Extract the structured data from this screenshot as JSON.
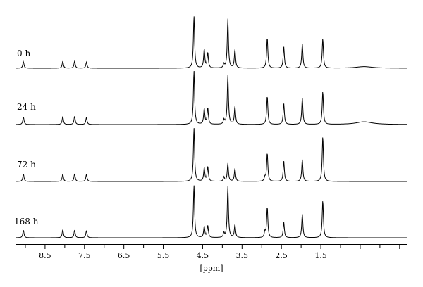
{
  "chart_data": {
    "type": "line",
    "xlabel": "[ppm]",
    "x_ticks": [
      "8.5",
      "7.5",
      "6.5",
      "5.5",
      "4.5",
      "3.5",
      "2.5",
      "1.5"
    ],
    "xlim": [
      9.25,
      -0.7
    ],
    "x_reversed": true,
    "series": [
      {
        "name": "0 h",
        "peaks": [
          {
            "x": 9.05,
            "h": 0.12
          },
          {
            "x": 8.05,
            "h": 0.13
          },
          {
            "x": 7.75,
            "h": 0.13
          },
          {
            "x": 7.45,
            "h": 0.11
          },
          {
            "x": 4.72,
            "h": 0.95
          },
          {
            "x": 4.46,
            "h": 0.34
          },
          {
            "x": 4.37,
            "h": 0.28
          },
          {
            "x": 3.96,
            "h": 0.07
          },
          {
            "x": 3.86,
            "h": 0.9
          },
          {
            "x": 3.68,
            "h": 0.34
          },
          {
            "x": 2.86,
            "h": 0.56
          },
          {
            "x": 2.44,
            "h": 0.39
          },
          {
            "x": 1.97,
            "h": 0.44
          },
          {
            "x": 1.45,
            "h": 0.54
          },
          {
            "x": 0.4,
            "h": 0.03
          }
        ]
      },
      {
        "name": "24 h",
        "peaks": [
          {
            "x": 9.05,
            "h": 0.14
          },
          {
            "x": 8.05,
            "h": 0.15
          },
          {
            "x": 7.75,
            "h": 0.15
          },
          {
            "x": 7.45,
            "h": 0.13
          },
          {
            "x": 4.72,
            "h": 0.98
          },
          {
            "x": 4.46,
            "h": 0.28
          },
          {
            "x": 4.37,
            "h": 0.3
          },
          {
            "x": 3.96,
            "h": 0.08
          },
          {
            "x": 3.86,
            "h": 0.9
          },
          {
            "x": 3.68,
            "h": 0.33
          },
          {
            "x": 2.86,
            "h": 0.52
          },
          {
            "x": 2.44,
            "h": 0.38
          },
          {
            "x": 1.97,
            "h": 0.48
          },
          {
            "x": 1.45,
            "h": 0.6
          },
          {
            "x": 0.4,
            "h": 0.05
          }
        ]
      },
      {
        "name": "72 h",
        "peaks": [
          {
            "x": 9.05,
            "h": 0.14
          },
          {
            "x": 8.05,
            "h": 0.14
          },
          {
            "x": 7.75,
            "h": 0.14
          },
          {
            "x": 7.45,
            "h": 0.13
          },
          {
            "x": 4.72,
            "h": 0.98
          },
          {
            "x": 4.46,
            "h": 0.24
          },
          {
            "x": 4.37,
            "h": 0.27
          },
          {
            "x": 3.96,
            "h": 0.08
          },
          {
            "x": 3.86,
            "h": 0.33
          },
          {
            "x": 3.68,
            "h": 0.24
          },
          {
            "x": 2.92,
            "h": 0.07
          },
          {
            "x": 2.86,
            "h": 0.52
          },
          {
            "x": 2.44,
            "h": 0.37
          },
          {
            "x": 1.97,
            "h": 0.4
          },
          {
            "x": 1.45,
            "h": 0.82
          }
        ]
      },
      {
        "name": "168 h",
        "peaks": [
          {
            "x": 9.05,
            "h": 0.14
          },
          {
            "x": 8.05,
            "h": 0.15
          },
          {
            "x": 7.75,
            "h": 0.14
          },
          {
            "x": 7.45,
            "h": 0.13
          },
          {
            "x": 4.72,
            "h": 0.96
          },
          {
            "x": 4.46,
            "h": 0.2
          },
          {
            "x": 4.37,
            "h": 0.22
          },
          {
            "x": 3.96,
            "h": 0.08
          },
          {
            "x": 3.86,
            "h": 0.94
          },
          {
            "x": 3.68,
            "h": 0.24
          },
          {
            "x": 2.92,
            "h": 0.1
          },
          {
            "x": 2.86,
            "h": 0.56
          },
          {
            "x": 2.44,
            "h": 0.28
          },
          {
            "x": 1.97,
            "h": 0.43
          },
          {
            "x": 1.45,
            "h": 0.68
          }
        ]
      }
    ]
  }
}
